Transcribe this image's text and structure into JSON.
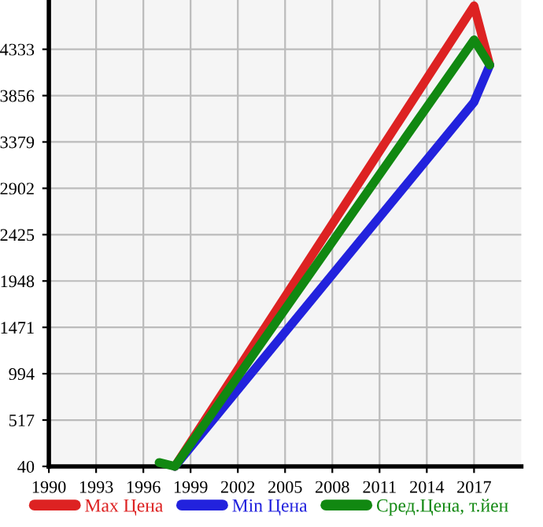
{
  "chart_data": {
    "type": "line",
    "xlim": [
      1990,
      2020
    ],
    "xticks": [
      1990,
      1993,
      1996,
      1999,
      2002,
      2005,
      2008,
      2011,
      2014,
      2017
    ],
    "ylim": [
      40,
      4840
    ],
    "yticks": [
      40,
      517,
      994,
      1471,
      1948,
      2425,
      2902,
      3379,
      3856,
      4333
    ],
    "grid": true,
    "legend": "bottom",
    "marker": "none",
    "line_style": "solid",
    "series": [
      {
        "name": "Max Цена",
        "color": "#dd2222",
        "x": [
          1998,
          2017,
          2018
        ],
        "values": [
          40,
          4780,
          4170
        ]
      },
      {
        "name": "Min Цена",
        "color": "#2222dd",
        "x": [
          1998,
          2017,
          2018
        ],
        "values": [
          40,
          3790,
          4170
        ]
      },
      {
        "name": "Сред.Цена, т.йен",
        "color": "#118811",
        "x": [
          1997,
          1998,
          2017,
          2018
        ],
        "values": [
          80,
          40,
          4430,
          4170
        ]
      }
    ]
  }
}
